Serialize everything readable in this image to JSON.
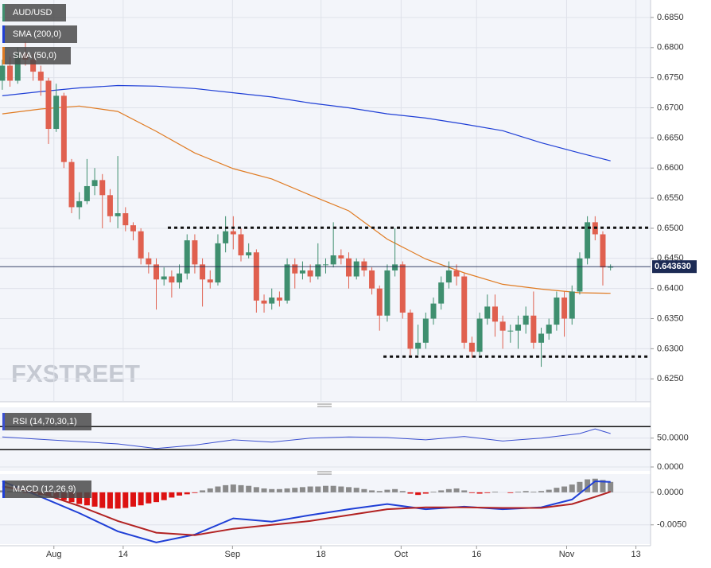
{
  "watermark": "FXSTREET",
  "chart_data": [
    {
      "type": "candlestick",
      "name": "AUD/USD",
      "up_color": "#3f8f6f",
      "down_color": "#e0604f",
      "open": [
        0.6745,
        0.677,
        0.6745,
        0.679,
        0.678,
        0.676,
        0.6745,
        0.6665,
        0.672,
        0.661,
        0.6535,
        0.6545,
        0.657,
        0.658,
        0.6555,
        0.652,
        0.6525,
        0.6505,
        0.6495,
        0.645,
        0.644,
        0.6415,
        0.642,
        0.641,
        0.6425,
        0.648,
        0.644,
        0.6415,
        0.641,
        0.6475,
        0.6495,
        0.649,
        0.6455,
        0.646,
        0.638,
        0.6375,
        0.6385,
        0.638,
        0.644,
        0.6425,
        0.643,
        0.642,
        0.644,
        0.644,
        0.6455,
        0.645,
        0.642,
        0.6445,
        0.643,
        0.64,
        0.6355,
        0.643,
        0.644,
        0.636,
        0.63,
        0.631,
        0.635,
        0.6375,
        0.641,
        0.643,
        0.642,
        0.631,
        0.6295,
        0.635,
        0.637,
        0.6345,
        0.633,
        0.633,
        0.634,
        0.6355,
        0.631,
        0.6325,
        0.634,
        0.6385,
        0.635,
        0.6395,
        0.645,
        0.651,
        0.649,
        0.6435
      ],
      "high": [
        0.678,
        0.6785,
        0.68,
        0.681,
        0.679,
        0.677,
        0.675,
        0.674,
        0.6725,
        0.6615,
        0.656,
        0.6615,
        0.66,
        0.659,
        0.6565,
        0.662,
        0.6535,
        0.651,
        0.65,
        0.646,
        0.645,
        0.6435,
        0.643,
        0.644,
        0.649,
        0.649,
        0.645,
        0.643,
        0.649,
        0.652,
        0.652,
        0.65,
        0.6475,
        0.6465,
        0.639,
        0.64,
        0.6395,
        0.645,
        0.645,
        0.6445,
        0.644,
        0.6475,
        0.645,
        0.651,
        0.6465,
        0.646,
        0.645,
        0.645,
        0.6435,
        0.6405,
        0.644,
        0.65,
        0.6445,
        0.6365,
        0.634,
        0.636,
        0.6385,
        0.642,
        0.6445,
        0.644,
        0.6425,
        0.632,
        0.636,
        0.639,
        0.639,
        0.6355,
        0.634,
        0.6355,
        0.637,
        0.6395,
        0.6335,
        0.635,
        0.6395,
        0.6395,
        0.6405,
        0.646,
        0.652,
        0.652,
        0.6495,
        0.644
      ],
      "low": [
        0.673,
        0.6735,
        0.674,
        0.677,
        0.6745,
        0.672,
        0.664,
        0.666,
        0.66,
        0.6525,
        0.6515,
        0.654,
        0.6555,
        0.65,
        0.651,
        0.65,
        0.6495,
        0.648,
        0.644,
        0.6425,
        0.6365,
        0.6405,
        0.6385,
        0.64,
        0.6415,
        0.6425,
        0.637,
        0.64,
        0.6405,
        0.646,
        0.6465,
        0.6445,
        0.645,
        0.636,
        0.636,
        0.6365,
        0.637,
        0.6375,
        0.64,
        0.6415,
        0.641,
        0.6415,
        0.6425,
        0.6435,
        0.644,
        0.64,
        0.6415,
        0.642,
        0.639,
        0.633,
        0.6345,
        0.642,
        0.635,
        0.6285,
        0.629,
        0.63,
        0.634,
        0.6365,
        0.64,
        0.6405,
        0.63,
        0.6285,
        0.629,
        0.634,
        0.632,
        0.63,
        0.631,
        0.63,
        0.6325,
        0.63,
        0.627,
        0.6315,
        0.633,
        0.632,
        0.634,
        0.639,
        0.644,
        0.648,
        0.6405,
        0.643
      ],
      "close": [
        0.677,
        0.6745,
        0.679,
        0.678,
        0.676,
        0.6745,
        0.6665,
        0.672,
        0.661,
        0.6535,
        0.6545,
        0.657,
        0.658,
        0.6555,
        0.652,
        0.6525,
        0.6505,
        0.6495,
        0.645,
        0.644,
        0.6415,
        0.642,
        0.641,
        0.6425,
        0.648,
        0.644,
        0.6415,
        0.641,
        0.6475,
        0.6495,
        0.649,
        0.6455,
        0.646,
        0.638,
        0.6375,
        0.6385,
        0.638,
        0.644,
        0.6425,
        0.643,
        0.642,
        0.644,
        0.644,
        0.6455,
        0.645,
        0.642,
        0.6445,
        0.643,
        0.64,
        0.6355,
        0.643,
        0.644,
        0.636,
        0.63,
        0.631,
        0.635,
        0.6375,
        0.641,
        0.643,
        0.642,
        0.631,
        0.6295,
        0.635,
        0.637,
        0.6345,
        0.633,
        0.633,
        0.634,
        0.6355,
        0.631,
        0.6325,
        0.634,
        0.6385,
        0.635,
        0.6395,
        0.645,
        0.651,
        0.649,
        0.6435,
        0.6436
      ],
      "series": [
        {
          "name": "SMA (200,0)",
          "color": "#1f3fd6",
          "x": [
            0,
            5,
            10,
            15,
            20,
            25,
            30,
            35,
            40,
            45,
            50,
            55,
            60,
            65,
            70,
            75,
            79
          ],
          "values": [
            0.672,
            0.6727,
            0.6733,
            0.6737,
            0.6736,
            0.6732,
            0.6725,
            0.6718,
            0.6708,
            0.67,
            0.669,
            0.6683,
            0.6673,
            0.6662,
            0.6642,
            0.6625,
            0.6612
          ]
        },
        {
          "name": "SMA (50,0)",
          "color": "#e07b22",
          "x": [
            0,
            5,
            10,
            15,
            20,
            25,
            30,
            35,
            40,
            45,
            50,
            55,
            60,
            65,
            70,
            75,
            79
          ],
          "values": [
            0.669,
            0.6698,
            0.6703,
            0.6694,
            0.6661,
            0.6625,
            0.6599,
            0.6582,
            0.6555,
            0.6529,
            0.6482,
            0.6449,
            0.6426,
            0.6407,
            0.6399,
            0.6393,
            0.6392
          ]
        }
      ],
      "levels": [
        {
          "value": 0.6501,
          "from": 21.5
        },
        {
          "value": 0.6287,
          "from": 49.5
        }
      ],
      "last_price": {
        "value": 0.64363,
        "label": "0.643630"
      },
      "xlim": [
        -0.3,
        84.2
      ],
      "ylim": [
        0.6212,
        0.6879
      ],
      "yticks": [
        {
          "value": 0.625,
          "label": "0.6250"
        },
        {
          "value": 0.63,
          "label": "0.6300"
        },
        {
          "value": 0.635,
          "label": "0.6350"
        },
        {
          "value": 0.64,
          "label": "0.6400"
        },
        {
          "value": 0.645,
          "label": "0.6450"
        },
        {
          "value": 0.65,
          "label": "0.6500"
        },
        {
          "value": 0.655,
          "label": "0.6550"
        },
        {
          "value": 0.66,
          "label": "0.6600"
        },
        {
          "value": 0.665,
          "label": "0.6650"
        },
        {
          "value": 0.67,
          "label": "0.6700"
        },
        {
          "value": 0.675,
          "label": "0.6750"
        },
        {
          "value": 0.68,
          "label": "0.6800"
        },
        {
          "value": 0.685,
          "label": "0.6850"
        }
      ],
      "grid": true
    },
    {
      "type": "line",
      "name": "RSI (14,70,30,1)",
      "color": "#3a4fd0",
      "x": [
        0,
        5,
        10,
        15,
        20,
        25,
        30,
        35,
        40,
        45,
        50,
        55,
        60,
        65,
        70,
        75,
        77,
        79
      ],
      "values": [
        52,
        48,
        44,
        40,
        32,
        38,
        47,
        43,
        50,
        52,
        51,
        47,
        53,
        45,
        50,
        58,
        66,
        58
      ],
      "levels": [
        70,
        30
      ],
      "xlim": [
        -0.3,
        84.2
      ],
      "ylim": [
        0,
        100
      ],
      "yticks": [
        {
          "value": 0,
          "label": "0.0000"
        },
        {
          "value": 50,
          "label": "50.0000"
        }
      ]
    },
    {
      "type": "macd",
      "name": "MACD (12,26,9)",
      "positive_color": "#8a8a8a",
      "negative_color": "#dd1111",
      "histogram": [
        0.0003,
        0.0002,
        0.0001,
        -0.0001,
        -0.0002,
        -0.0004,
        -0.0006,
        -0.0008,
        -0.0012,
        -0.0015,
        -0.0018,
        -0.002,
        -0.0022,
        -0.0024,
        -0.0025,
        -0.0025,
        -0.0024,
        -0.0022,
        -0.002,
        -0.0017,
        -0.0015,
        -0.0012,
        -0.0008,
        -0.0005,
        -0.0003,
        -0.0001,
        0.0003,
        0.0006,
        0.0009,
        0.0011,
        0.0012,
        0.0011,
        0.001,
        0.0008,
        0.0006,
        0.0005,
        0.0005,
        0.0006,
        0.0007,
        0.0008,
        0.0009,
        0.0009,
        0.001,
        0.001,
        0.0009,
        0.0008,
        0.0007,
        0.0005,
        0.0003,
        0.0002,
        0.0004,
        0.0005,
        0.0002,
        -0.0002,
        -0.0004,
        -0.0002,
        0.0001,
        0.0003,
        0.0005,
        0.0006,
        0.0003,
        -0.0001,
        -0.0002,
        -0.0001,
        0.0001,
        0,
        -0.0001,
        0.0001,
        0.0002,
        0.0001,
        0.0002,
        0.0004,
        0.0007,
        0.0009,
        0.0012,
        0.0016,
        0.002,
        0.0021,
        0.0019,
        0.0016
      ],
      "series": [
        {
          "color": "#1f3fd6",
          "x": [
            0,
            5,
            10,
            15,
            20,
            25,
            30,
            35,
            40,
            45,
            50,
            55,
            60,
            65,
            70,
            74,
            77,
            79
          ],
          "values": [
            0.0017,
            -0.0007,
            -0.0032,
            -0.006,
            -0.0077,
            -0.0065,
            -0.004,
            -0.0045,
            -0.0035,
            -0.0026,
            -0.0018,
            -0.0026,
            -0.0022,
            -0.0026,
            -0.0023,
            -0.0011,
            0.0017,
            0.0016
          ]
        },
        {
          "color": "#b22222",
          "x": [
            0,
            5,
            10,
            15,
            20,
            25,
            30,
            35,
            40,
            45,
            50,
            55,
            60,
            65,
            70,
            74,
            77,
            79
          ],
          "values": [
            0.0009,
            -0.0001,
            -0.0021,
            -0.0044,
            -0.0062,
            -0.0066,
            -0.0056,
            -0.005,
            -0.0044,
            -0.0035,
            -0.0026,
            -0.0023,
            -0.0023,
            -0.0024,
            -0.0024,
            -0.0018,
            -0.0007,
            0.0001
          ]
        }
      ],
      "xlim": [
        -0.3,
        84.2
      ],
      "ylim": [
        -0.0087,
        0.0028
      ],
      "yticks": [
        {
          "value": -0.005,
          "label": "-0.0050"
        },
        {
          "value": 0,
          "label": "0.0000"
        }
      ],
      "xticks": [
        {
          "value": 6.7,
          "label": "Aug"
        },
        {
          "value": 15.7,
          "label": "14"
        },
        {
          "value": 29.9,
          "label": "Sep"
        },
        {
          "value": 41.4,
          "label": "18"
        },
        {
          "value": 51.8,
          "label": "Oct"
        },
        {
          "value": 61.6,
          "label": "16"
        },
        {
          "value": 73.3,
          "label": "Nov"
        },
        {
          "value": 82.3,
          "label": "13"
        }
      ]
    }
  ]
}
